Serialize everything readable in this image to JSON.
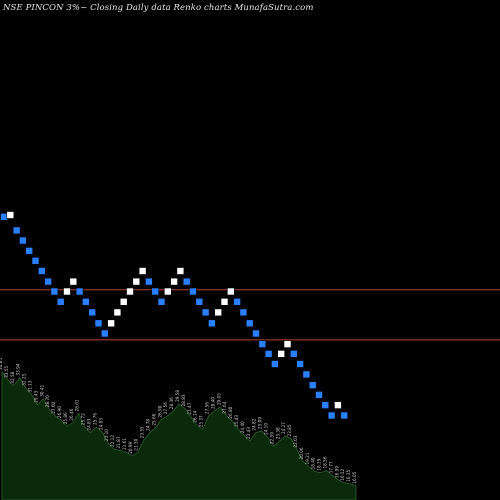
{
  "header": {
    "title": "NSE PINCON 3%~ Closing Daily data Renko charts MunafaSutra.com"
  },
  "colors": {
    "background": "#000000",
    "up_brick": "#ffffff",
    "down_brick": "#2a7fff",
    "reference_line": "#b0442a",
    "volume_fill": "#0b2a0b",
    "volume_stroke": "#2e5e2e",
    "volume_label": "#cfcfcf"
  },
  "chart_data": [
    {
      "type": "renko",
      "brick_size": "3%",
      "bricks": [
        {
          "dir": "down",
          "level": 45.9
        },
        {
          "dir": "up",
          "level": 46.15
        },
        {
          "dir": "down",
          "level": 44.1
        },
        {
          "dir": "down",
          "level": 42.8
        },
        {
          "dir": "down",
          "level": 41.5
        },
        {
          "dir": "down",
          "level": 40.3
        },
        {
          "dir": "down",
          "level": 39.1
        },
        {
          "dir": "down",
          "level": 37.9
        },
        {
          "dir": "down",
          "level": 36.8
        },
        {
          "dir": "down",
          "level": 35.7
        },
        {
          "dir": "up",
          "level": 36.8
        },
        {
          "dir": "up",
          "level": 37.9
        },
        {
          "dir": "down",
          "level": 36.8
        },
        {
          "dir": "down",
          "level": 35.7
        },
        {
          "dir": "down",
          "level": 34.6
        },
        {
          "dir": "down",
          "level": 33.5
        },
        {
          "dir": "down",
          "level": 32.5
        },
        {
          "dir": "up",
          "level": 33.5
        },
        {
          "dir": "up",
          "level": 34.6
        },
        {
          "dir": "up",
          "level": 35.7
        },
        {
          "dir": "up",
          "level": 36.8
        },
        {
          "dir": "up",
          "level": 37.9
        },
        {
          "dir": "up",
          "level": 39.1
        },
        {
          "dir": "down",
          "level": 37.9
        },
        {
          "dir": "down",
          "level": 36.8
        },
        {
          "dir": "down",
          "level": 35.7
        },
        {
          "dir": "up",
          "level": 36.8
        },
        {
          "dir": "up",
          "level": 37.9
        },
        {
          "dir": "up",
          "level": 39.1
        },
        {
          "dir": "down",
          "level": 37.9
        },
        {
          "dir": "down",
          "level": 36.8
        },
        {
          "dir": "down",
          "level": 35.7
        },
        {
          "dir": "down",
          "level": 34.6
        },
        {
          "dir": "down",
          "level": 33.5
        },
        {
          "dir": "up",
          "level": 34.6
        },
        {
          "dir": "up",
          "level": 35.7
        },
        {
          "dir": "up",
          "level": 36.8
        },
        {
          "dir": "down",
          "level": 35.7
        },
        {
          "dir": "down",
          "level": 34.6
        },
        {
          "dir": "down",
          "level": 33.5
        },
        {
          "dir": "down",
          "level": 32.5
        },
        {
          "dir": "down",
          "level": 31.5
        },
        {
          "dir": "down",
          "level": 30.6
        },
        {
          "dir": "down",
          "level": 29.7
        },
        {
          "dir": "up",
          "level": 30.6
        },
        {
          "dir": "up",
          "level": 31.5
        },
        {
          "dir": "down",
          "level": 30.6
        },
        {
          "dir": "down",
          "level": 29.7
        },
        {
          "dir": "down",
          "level": 28.8
        },
        {
          "dir": "down",
          "level": 27.9
        },
        {
          "dir": "down",
          "level": 27.1
        },
        {
          "dir": "down",
          "level": 26.3
        },
        {
          "dir": "down",
          "level": 25.5
        },
        {
          "dir": "up",
          "level": 26.3
        },
        {
          "dir": "down",
          "level": 25.5
        }
      ],
      "reference_lines": [
        {
          "level": 37.0
        },
        {
          "level": 31.9
        }
      ]
    },
    {
      "type": "area",
      "label_values": [
        "34.85",
        "33.55",
        "32.58",
        "33.94",
        "32.25",
        "31.13",
        "29.43",
        "30.41",
        "28.70",
        "27.60",
        "26.90",
        "25.86",
        "26.46",
        "28.01",
        "25.72",
        "24.83",
        "25.76",
        "24.93",
        "23.10",
        "22.12",
        "21.87",
        "21.61",
        "20.99",
        "21.50",
        "23.55",
        "24.78",
        "25.66",
        "26.98",
        "27.56",
        "28.36",
        "29.58",
        "28.83",
        "27.47",
        "26.14",
        "25.37",
        "27.56",
        "28.40",
        "29.05",
        "27.64",
        "26.80",
        "25.43",
        "24.40",
        "23.43",
        "24.82",
        "25.09",
        "24.10",
        "22.59",
        "23.38",
        "24.27",
        "23.85",
        "22.03",
        "20.06",
        "19.21",
        "18.40",
        "18.19",
        "18.56",
        "17.77",
        "16.99",
        "16.52",
        "16.35",
        "16.05"
      ]
    }
  ]
}
